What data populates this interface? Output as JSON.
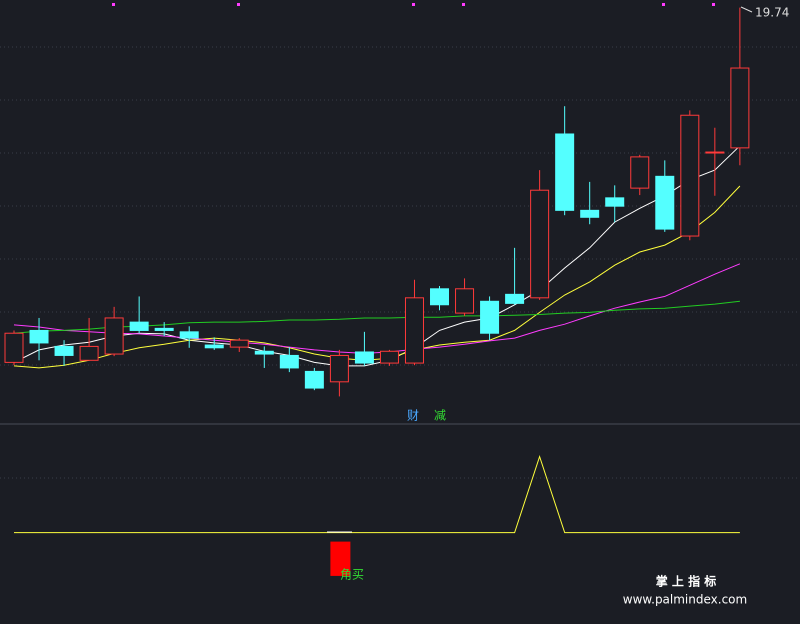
{
  "chart_data": [
    {
      "type": "candlestick",
      "open": [
        14.63,
        15.09,
        14.86,
        14.66,
        14.75,
        15.21,
        15.12,
        15.07,
        14.88,
        14.85,
        14.79,
        14.73,
        14.5,
        14.35,
        14.78,
        14.62,
        14.62,
        15.69,
        15.34,
        15.51,
        15.61,
        15.56,
        17.92,
        16.82,
        17.0,
        17.14,
        17.31,
        16.45,
        17.65,
        17.72
      ],
      "high": [
        15.09,
        15.27,
        14.95,
        15.27,
        15.43,
        15.58,
        15.21,
        15.15,
        14.99,
        14.98,
        14.86,
        14.85,
        14.55,
        14.81,
        15.07,
        14.81,
        15.82,
        15.73,
        15.84,
        15.58,
        16.28,
        17.4,
        18.32,
        17.23,
        17.18,
        17.62,
        17.54,
        18.26,
        18.01,
        19.74
      ],
      "low": [
        14.59,
        14.66,
        14.58,
        14.66,
        14.72,
        15.05,
        15.01,
        14.84,
        14.81,
        14.78,
        14.55,
        14.49,
        14.23,
        14.14,
        14.58,
        14.58,
        14.59,
        15.38,
        15.3,
        14.95,
        15.46,
        15.53,
        16.75,
        16.62,
        16.65,
        17.04,
        16.51,
        16.39,
        17.03,
        17.47
      ],
      "close": [
        15.05,
        14.91,
        14.73,
        14.86,
        15.27,
        15.09,
        15.09,
        14.98,
        14.84,
        14.95,
        14.75,
        14.55,
        14.26,
        14.73,
        14.62,
        14.79,
        15.56,
        15.46,
        15.69,
        15.05,
        15.48,
        17.11,
        16.82,
        16.72,
        16.88,
        17.59,
        16.55,
        18.19,
        17.66,
        18.87
      ],
      "up_color": "#ff3a3a",
      "down_color": "#54ffff",
      "lines": [
        {
          "color": "#ffffff",
          "values": [
            14.63,
            14.81,
            14.88,
            14.92,
            15.01,
            15.05,
            15.04,
            14.95,
            14.91,
            14.88,
            14.79,
            14.73,
            14.63,
            14.58,
            14.58,
            14.66,
            14.84,
            15.09,
            15.21,
            15.27,
            15.46,
            15.67,
            15.99,
            16.28,
            16.65,
            16.85,
            17.03,
            17.26,
            17.4,
            17.75
          ]
        },
        {
          "color": "#ffff3c",
          "values": [
            14.58,
            14.55,
            14.59,
            14.66,
            14.76,
            14.84,
            14.89,
            14.95,
            14.98,
            14.95,
            14.91,
            14.84,
            14.75,
            14.69,
            14.66,
            14.69,
            14.81,
            14.88,
            14.92,
            14.95,
            15.09,
            15.35,
            15.6,
            15.79,
            16.03,
            16.22,
            16.32,
            16.51,
            16.79,
            17.17
          ]
        },
        {
          "color": "#ff3cff",
          "values": [
            15.17,
            15.14,
            15.09,
            15.07,
            15.05,
            15.04,
            15.01,
            14.98,
            14.95,
            14.92,
            14.89,
            14.85,
            14.81,
            14.78,
            14.76,
            14.78,
            14.82,
            14.85,
            14.89,
            14.94,
            14.98,
            15.09,
            15.18,
            15.3,
            15.41,
            15.5,
            15.58,
            15.74,
            15.9,
            16.05
          ]
        },
        {
          "color": "#22cc22",
          "values": [
            15.05,
            15.08,
            15.09,
            15.11,
            15.14,
            15.15,
            15.17,
            15.2,
            15.21,
            15.21,
            15.22,
            15.24,
            15.24,
            15.25,
            15.27,
            15.27,
            15.28,
            15.28,
            15.3,
            15.3,
            15.31,
            15.32,
            15.34,
            15.35,
            15.38,
            15.4,
            15.41,
            15.44,
            15.47,
            15.51
          ]
        }
      ],
      "ylim": [
        13.8,
        19.85
      ],
      "annotations": [
        {
          "text": "财",
          "color": "#4aa8ff"
        },
        {
          "text": "减",
          "color": "#33dd33"
        }
      ]
    },
    {
      "type": "line",
      "series": [
        {
          "color": "#ffff3c",
          "values": [
            0,
            0,
            0,
            0,
            0,
            0,
            0,
            0,
            0,
            0,
            0,
            0,
            0,
            0,
            0,
            0,
            0,
            0,
            0,
            0,
            0,
            1,
            0,
            0,
            0,
            0,
            0,
            0,
            0,
            0
          ]
        }
      ],
      "signals": {
        "color": "#ff0000",
        "label": "角买",
        "label_color": "#33dd33",
        "values": [
          null,
          null,
          null,
          null,
          null,
          null,
          null,
          null,
          null,
          null,
          null,
          null,
          null,
          -0.57,
          null,
          null,
          null,
          null,
          null,
          null,
          null,
          null,
          null,
          null,
          null,
          null,
          null,
          null,
          null,
          null
        ]
      },
      "ylim": [
        -1.15,
        1.35
      ]
    }
  ],
  "watermark": {
    "title": "掌 上 指 标",
    "url": "www.palmindex.com"
  }
}
